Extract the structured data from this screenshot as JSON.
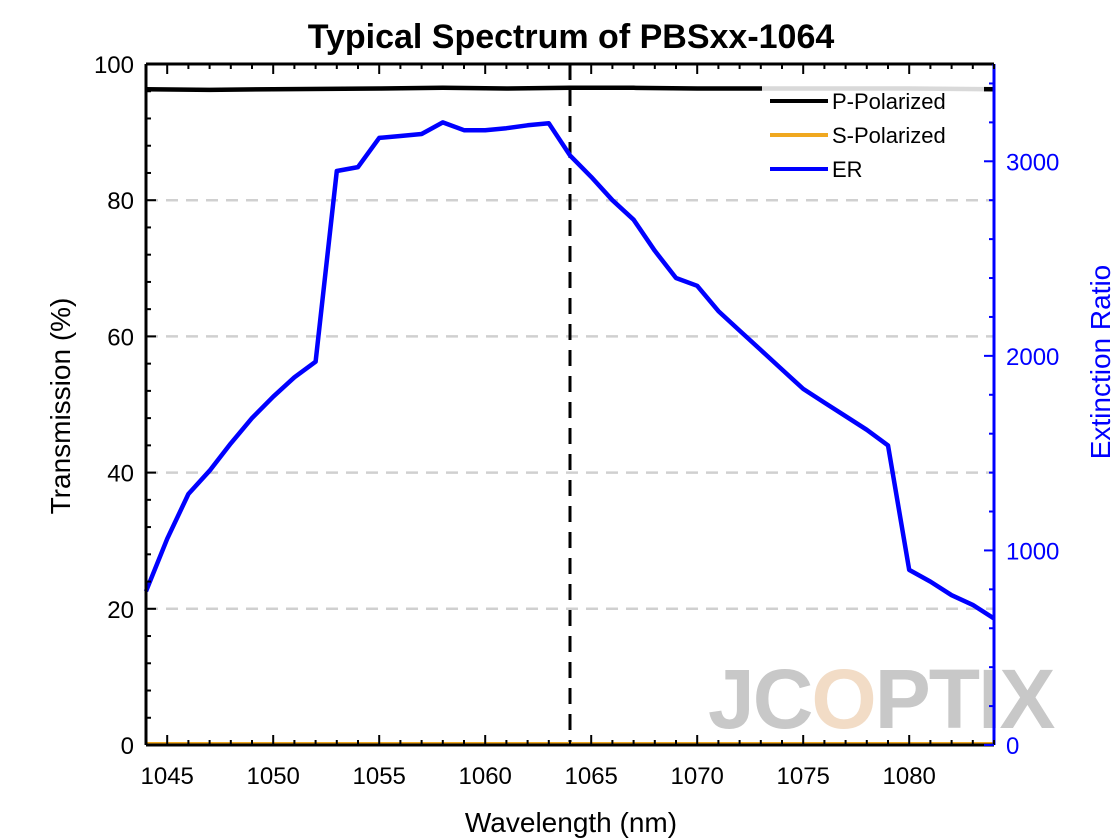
{
  "chart_data": {
    "type": "line",
    "title": "Typical Spectrum of PBSxx-1064",
    "xlabel": "Wavelength (nm)",
    "ylabel_left": "Transmission (%)",
    "ylabel_right": "Extinction Ratio",
    "xlim": [
      1044,
      1084
    ],
    "ylim_left": [
      0,
      100
    ],
    "ylim_right": [
      0,
      3500
    ],
    "x_ticks": [
      1045,
      1050,
      1055,
      1060,
      1065,
      1070,
      1075,
      1080
    ],
    "y_left_ticks": [
      0,
      20,
      40,
      60,
      80,
      100
    ],
    "y_right_ticks": [
      0,
      1000,
      2000,
      3000
    ],
    "grid": "horizontal dashed",
    "legend_position": "top-right",
    "marker_line_x": 1064,
    "series": [
      {
        "name": "P-Polarized",
        "axis": "left",
        "color": "#000000",
        "x": [
          1044,
          1047,
          1050,
          1055,
          1058,
          1061,
          1064,
          1067,
          1070,
          1075,
          1080,
          1084
        ],
        "values": [
          96.3,
          96.2,
          96.3,
          96.4,
          96.5,
          96.4,
          96.5,
          96.5,
          96.4,
          96.4,
          96.4,
          96.3
        ]
      },
      {
        "name": "S-Polarized",
        "axis": "left",
        "color": "#f0a820",
        "x": [
          1044,
          1084
        ],
        "values": [
          0.1,
          0.1
        ]
      },
      {
        "name": "ER",
        "axis": "right",
        "color": "#0000ff",
        "x": [
          1044,
          1045,
          1046,
          1047,
          1048,
          1049,
          1050,
          1051,
          1052,
          1053,
          1054,
          1055,
          1056,
          1057,
          1058,
          1059,
          1060,
          1061,
          1062,
          1063,
          1064,
          1065,
          1066,
          1067,
          1068,
          1069,
          1070,
          1071,
          1072,
          1073,
          1074,
          1075,
          1076,
          1077,
          1078,
          1079,
          1080,
          1081,
          1082,
          1083,
          1084
        ],
        "values": [
          790,
          1060,
          1290,
          1410,
          1550,
          1680,
          1790,
          1890,
          1970,
          2950,
          2970,
          3120,
          3130,
          3140,
          3200,
          3160,
          3160,
          3170,
          3185,
          3195,
          3030,
          2920,
          2800,
          2700,
          2540,
          2400,
          2360,
          2230,
          2130,
          2030,
          1930,
          1830,
          1760,
          1690,
          1620,
          1540,
          900,
          840,
          770,
          720,
          650
        ]
      }
    ]
  },
  "watermark": {
    "text_start": "JC",
    "text_o": "O",
    "text_end": "PTIX",
    "color": "#c8c8c8",
    "accent": "#f0a820"
  }
}
